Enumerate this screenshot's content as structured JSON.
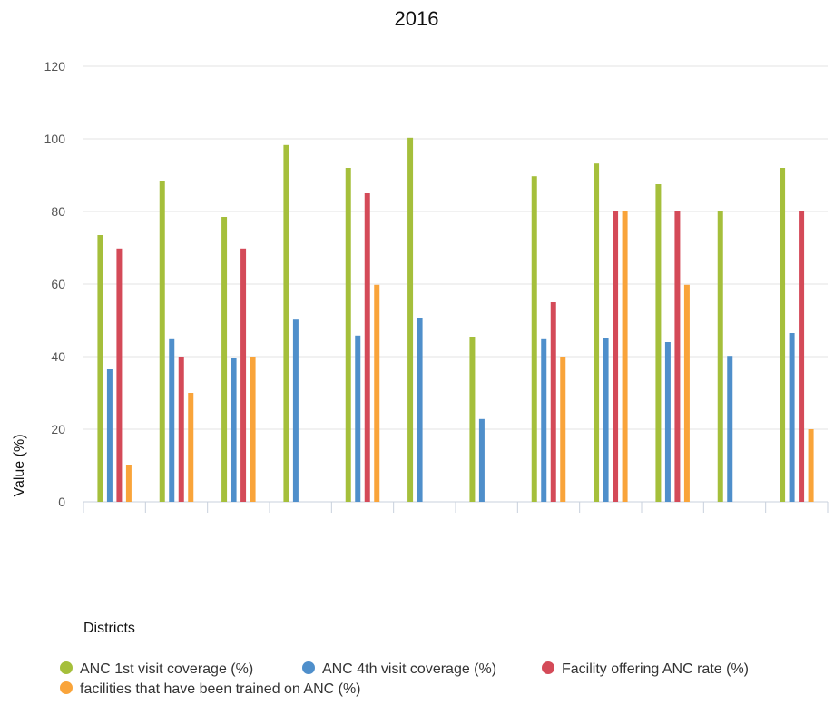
{
  "chart_data": {
    "type": "bar",
    "title": "2016",
    "xlabel": "Districts",
    "ylabel": "Value (%)",
    "ylim": [
      0,
      120
    ],
    "yticks": [
      0,
      20,
      40,
      60,
      80,
      100,
      120
    ],
    "grid": true,
    "legend_position": "bottom-left",
    "category_count": 12,
    "series": [
      {
        "name": "ANC 1st visit coverage (%)",
        "color": "#a5bf3b",
        "values": [
          73.5,
          88.5,
          78.5,
          98.3,
          92,
          100.3,
          45.5,
          89.7,
          93.2,
          87.5,
          80,
          92
        ]
      },
      {
        "name": "ANC 4th visit coverage (%)",
        "color": "#4f8fcb",
        "values": [
          36.5,
          44.8,
          39.5,
          50.2,
          45.8,
          50.6,
          22.8,
          44.8,
          45,
          44,
          40.2,
          46.5
        ]
      },
      {
        "name": "Facility offering ANC rate (%)",
        "color": "#d44a58",
        "values": [
          69.8,
          40,
          69.8,
          null,
          85,
          null,
          null,
          55,
          80,
          80,
          null,
          80
        ]
      },
      {
        "name": "facilities that have been trained on ANC (%)",
        "color": "#f9a43a",
        "values": [
          10,
          30,
          40,
          null,
          59.8,
          null,
          null,
          40,
          80,
          59.8,
          null,
          20
        ]
      }
    ]
  }
}
